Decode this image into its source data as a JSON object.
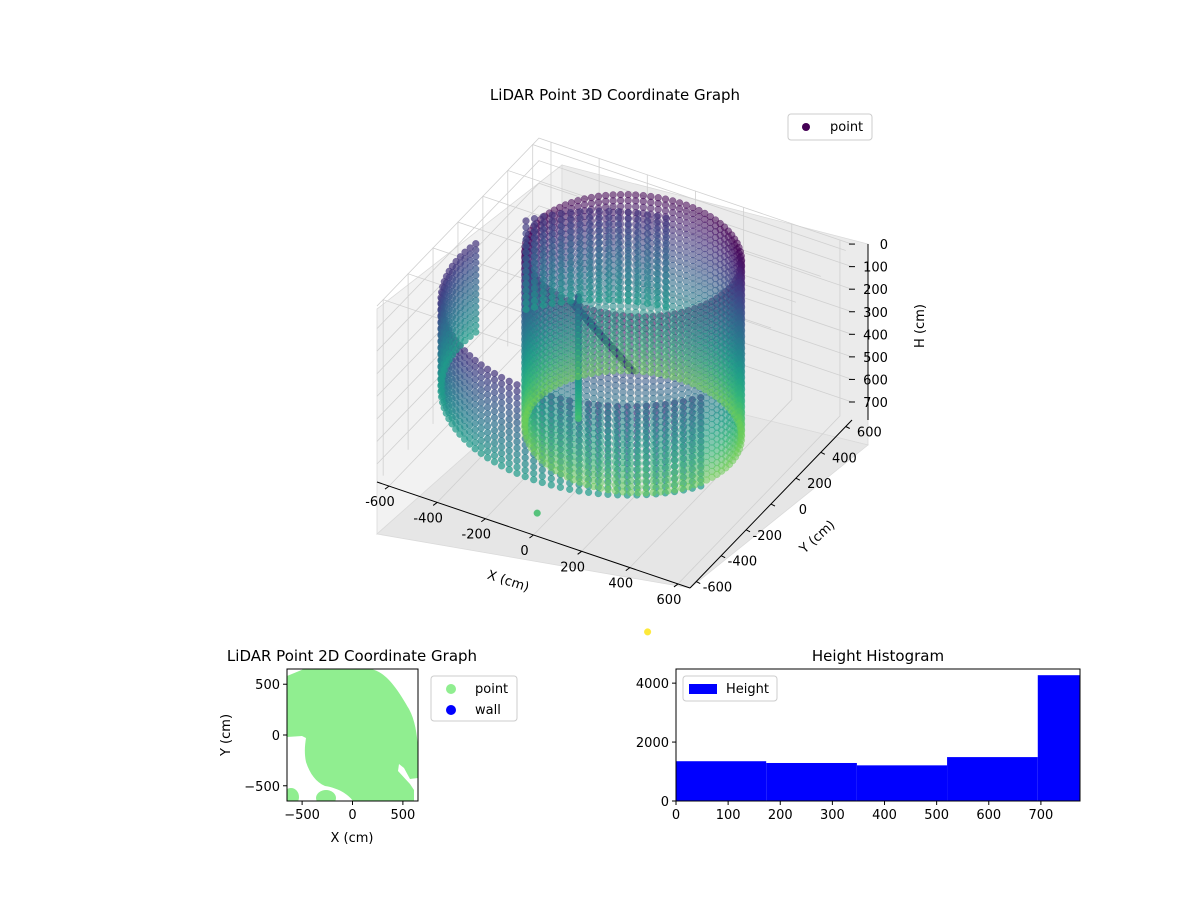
{
  "chart_data": [
    {
      "type": "scatter",
      "projection": "3d",
      "title": "LiDAR Point 3D Coordinate Graph",
      "xlabel": "X (cm)",
      "ylabel": "Y (cm)",
      "zlabel": "H (cm)",
      "x_ticks": [
        "-600",
        "-400",
        "-200",
        "0",
        "200",
        "400",
        "600"
      ],
      "y_ticks": [
        "-600",
        "-400",
        "-200",
        "0",
        "200",
        "400",
        "600"
      ],
      "z_ticks": [
        "0",
        "100",
        "200",
        "300",
        "400",
        "500",
        "600",
        "700"
      ],
      "xlim": [
        -650,
        650
      ],
      "ylim": [
        -650,
        650
      ],
      "zlim": [
        0,
        780
      ],
      "z_inverted": true,
      "colormap": "viridis",
      "grid": true,
      "legend": {
        "position": "upper-right",
        "entries": [
          {
            "label": "point",
            "color": "#440154"
          }
        ]
      },
      "series": [
        {
          "name": "point",
          "structures": {
            "cylinder": {
              "cx": 0,
              "cy": 150,
              "r": 400,
              "h_range": [
                0,
                780
              ]
            },
            "outer_wall_arc": {
              "r": 640,
              "h_range": [
                150,
                560
              ]
            },
            "beam": {
              "from": [
                -150,
                -50,
                150
              ],
              "to": [
                250,
                -350,
                130
              ]
            },
            "pole": {
              "x": -150,
              "y": 0,
              "h_range": [
                150,
                700
              ]
            },
            "outliers": [
              {
                "x": 0,
                "y": -620,
                "h": 700
              },
              {
                "x": 500,
                "y": -700,
                "h": 1000
              }
            ]
          }
        }
      ]
    },
    {
      "type": "scatter",
      "title": "LiDAR Point 2D Coordinate Graph",
      "xlabel": "X (cm)",
      "ylabel": "Y (cm)",
      "x_ticks": [
        "−500",
        "0",
        "500"
      ],
      "y_ticks": [
        "−500",
        "0",
        "500"
      ],
      "xlim": [
        -650,
        650
      ],
      "ylim": [
        -650,
        650
      ],
      "legend": {
        "position": "outside-right",
        "entries": [
          {
            "label": "point",
            "color": "#90ee90"
          },
          {
            "label": "wall",
            "color": "#0000ff"
          }
        ]
      }
    },
    {
      "type": "bar",
      "subtype": "histogram",
      "title": "Height Histogram",
      "series": [
        {
          "name": "Height",
          "color": "#0000ff"
        }
      ],
      "bins": [
        {
          "start": 0,
          "end": 173,
          "count": 1350
        },
        {
          "start": 173,
          "end": 347,
          "count": 1290
        },
        {
          "start": 347,
          "end": 520,
          "count": 1210
        },
        {
          "start": 520,
          "end": 694,
          "count": 1490
        },
        {
          "start": 694,
          "end": 775,
          "count": 4270
        }
      ],
      "x_ticks": [
        "0",
        "100",
        "200",
        "300",
        "400",
        "500",
        "600",
        "700"
      ],
      "y_ticks": [
        "0",
        "2000",
        "4000"
      ],
      "xlim": [
        0,
        775
      ],
      "ylim": [
        0,
        4480
      ],
      "legend": {
        "position": "upper-left"
      }
    }
  ]
}
